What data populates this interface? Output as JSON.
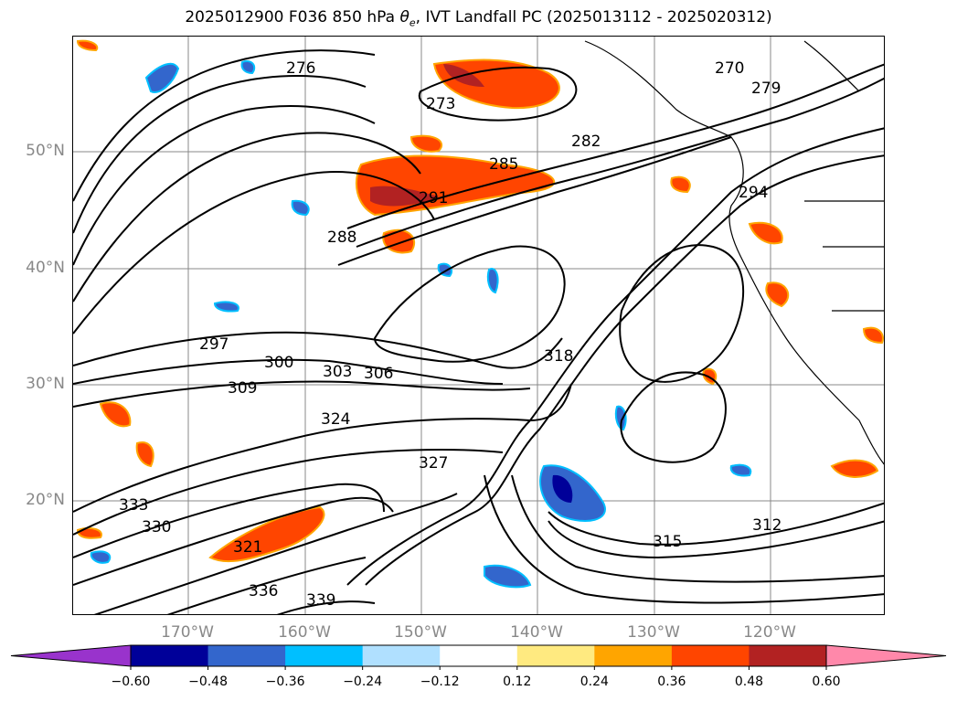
{
  "title": {
    "prefix": "2025012900 F036 850 hPa ",
    "theta": "θ",
    "theta_sub": "e",
    "suffix": ", IVT Landfall PC (2025013112 - 2025020312)"
  },
  "lat_labels": [
    "50°N",
    "40°N",
    "30°N",
    "20°N"
  ],
  "lon_labels": [
    "170°W",
    "160°W",
    "150°W",
    "140°W",
    "130°W",
    "120°W"
  ],
  "contour_labels": [
    "270",
    "273",
    "276",
    "279",
    "282",
    "285",
    "288",
    "291",
    "294",
    "297",
    "300",
    "303",
    "306",
    "309",
    "312",
    "315",
    "318",
    "321",
    "324",
    "327",
    "330",
    "333",
    "336",
    "339"
  ],
  "colorbar": {
    "ticks": [
      "−0.60",
      "−0.48",
      "−0.36",
      "−0.24",
      "−0.12",
      "0.12",
      "0.24",
      "0.36",
      "0.48",
      "0.60"
    ],
    "colors": [
      "#9933cc",
      "#000099",
      "#3366cc",
      "#00bfff",
      "#b0e0ff",
      "#ffffff",
      "#ffea80",
      "#ffa500",
      "#ff4500",
      "#b22222",
      "#ff88aa"
    ]
  },
  "colors": {
    "contour": "#000000",
    "grid": "#888888",
    "positive_mid": "#ff4500",
    "positive_low": "#ffa500",
    "positive_high": "#b22222",
    "negative_mid": "#3366cc",
    "negative_high": "#000099",
    "negative_low": "#00bfff"
  }
}
